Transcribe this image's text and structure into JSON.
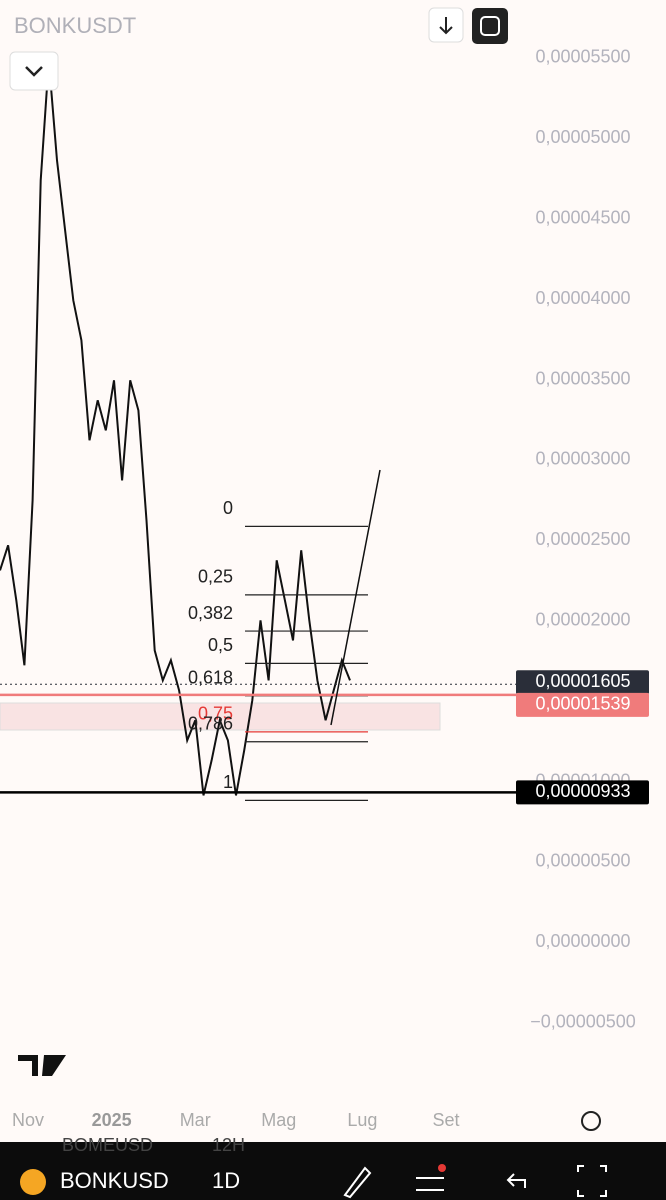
{
  "header": {
    "symbol": "BONKUSDT"
  },
  "chart_data": {
    "type": "line",
    "color": "#111111",
    "values": [
      2.313e-05,
      2.469e-05,
      2.127e-05,
      1.723e-05,
      2.749e-05,
      4.739e-05,
      5.485e-05,
      4.863e-05,
      4.428e-05,
      3.992e-05,
      3.744e-05,
      3.122e-05,
      3.371e-05,
      3.184e-05,
      3.495e-05,
      2.873e-05,
      3.495e-05,
      3.308e-05,
      2.624e-05,
      1.816e-05,
      1.629e-05,
      1.754e-05,
      1.567e-05,
      1.256e-05,
      1.381e-05,
      9.14e-06,
      1.132e-05,
      1.381e-05,
      1.256e-05,
      9.14e-06,
      1.194e-05,
      1.505e-05,
      2.002e-05,
      1.629e-05,
      2.376e-05,
      2.127e-05,
      1.878e-05,
      2.438e-05,
      2.002e-05,
      1.629e-05,
      1.381e-05,
      1.567e-05,
      1.754e-05,
      1.629e-05
    ],
    "ylim": [
      -9.8e-06,
      5.86e-05
    ],
    "yticks": [
      {
        "value": 5.5e-05,
        "label": "0,00005500"
      },
      {
        "value": 5e-05,
        "label": "0,00005000"
      },
      {
        "value": 4.5e-05,
        "label": "0,00004500"
      },
      {
        "value": 4e-05,
        "label": "0,00004000"
      },
      {
        "value": 3.5e-05,
        "label": "0,00003500"
      },
      {
        "value": 3e-05,
        "label": "0,00003000"
      },
      {
        "value": 2.5e-05,
        "label": "0,00002500"
      },
      {
        "value": 2e-05,
        "label": "0,00002000"
      },
      {
        "value": 1e-05,
        "label": "0,00001000"
      },
      {
        "value": 5e-06,
        "label": "0,00000500"
      },
      {
        "value": 0,
        "label": "0,00000000"
      },
      {
        "value": -5e-06,
        "label": "−0,00000500"
      }
    ],
    "xaxis_labels": [
      "Nov",
      "2025",
      "Mar",
      "Mag",
      "Lug",
      "Set"
    ],
    "fib": {
      "high": 2.587e-05,
      "low": 8.83e-06,
      "levels": [
        {
          "value": 0,
          "label": "0"
        },
        {
          "value": 0.25,
          "label": "0,25"
        },
        {
          "value": 0.382,
          "label": "0,382"
        },
        {
          "value": 0.5,
          "label": "0,5"
        },
        {
          "value": 0.618,
          "label": "0,618"
        },
        {
          "value": 0.75,
          "label": "0,75"
        },
        {
          "value": 0.786,
          "label": "0,786"
        },
        1
      ]
    },
    "price_lines": [
      {
        "value": 1.605e-05,
        "label": "0,00001605",
        "color": "#2a2e39",
        "style": "dotted"
      },
      {
        "value": 1.539e-05,
        "label": "0,00001539",
        "color": "#f07b7b",
        "style": "solid"
      },
      {
        "value": 9.33e-06,
        "label": "0,00000933",
        "color": "#000000",
        "style": "solid"
      }
    ]
  },
  "bottom_bar": {
    "ghost_symbol": "BOMEUSD",
    "ghost_interval": "12H",
    "symbol": "BONKUSD",
    "interval": "1D"
  }
}
